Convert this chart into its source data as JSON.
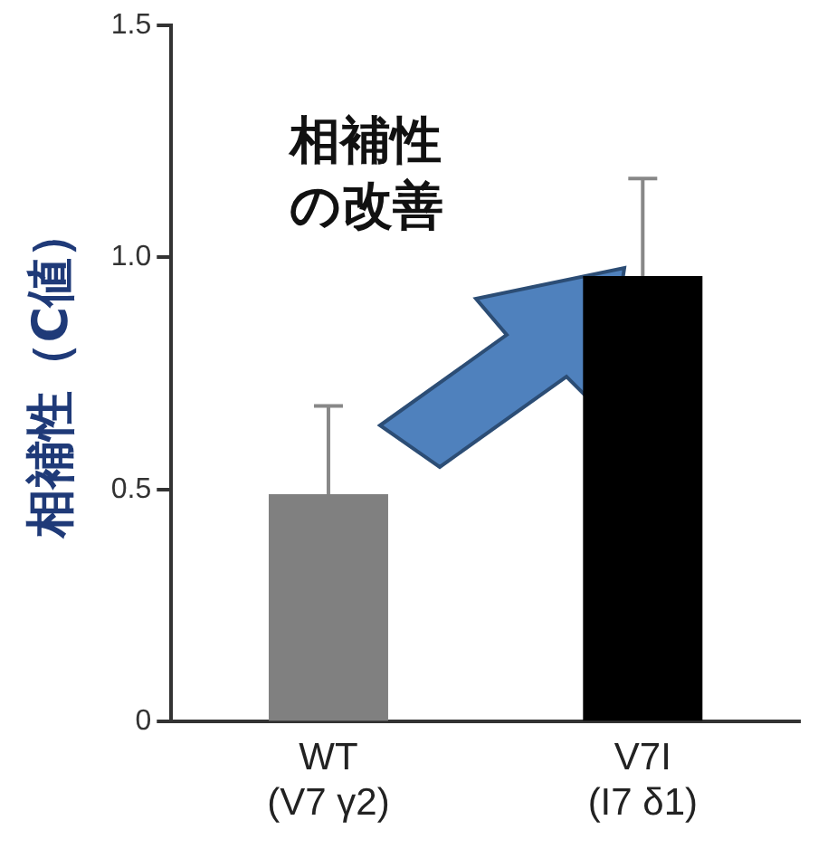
{
  "chart_data": {
    "type": "bar",
    "categories": [
      "WT\n(V7 γ2)",
      "V7I\n(I7 δ1)"
    ],
    "values": [
      0.49,
      0.96
    ],
    "colors": [
      "#808080",
      "#000000"
    ],
    "errors": [
      [
        0.49,
        0.68
      ],
      [
        0.96,
        1.17
      ]
    ],
    "ylim": [
      0,
      1.5
    ],
    "yticks": [
      {
        "value": 0,
        "label": "0"
      },
      0.5,
      {
        "value": 1,
        "label": "1.0"
      },
      1.5
    ],
    "ylabel": "相補性（C値）",
    "annotations": [
      "相補性",
      "の改善"
    ],
    "grid": false,
    "legend": false
  }
}
